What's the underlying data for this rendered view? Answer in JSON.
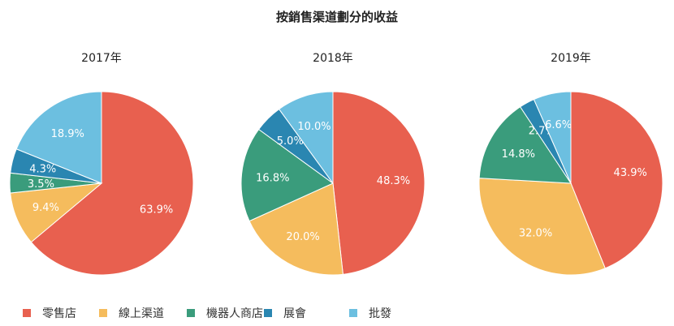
{
  "chart_data": [
    {
      "type": "pie",
      "title": "2017年",
      "categories": [
        "零售店",
        "線上渠道",
        "機器人商店",
        "展會",
        "批發"
      ],
      "values": [
        63.9,
        9.4,
        3.5,
        4.3,
        18.9
      ]
    },
    {
      "type": "pie",
      "title": "2018年",
      "categories": [
        "零售店",
        "線上渠道",
        "機器人商店",
        "展會",
        "批發"
      ],
      "values": [
        48.3,
        20.0,
        16.8,
        5.0,
        10.0
      ]
    },
    {
      "type": "pie",
      "title": "2019年",
      "categories": [
        "零售店",
        "線上渠道",
        "機器人商店",
        "展會",
        "批發"
      ],
      "values": [
        43.9,
        32.0,
        14.8,
        2.7,
        6.6
      ]
    }
  ],
  "title": "按銷售渠道劃分的收益",
  "legend": {
    "position": "bottom",
    "items": [
      "零售店",
      "線上渠道",
      "機器人商店",
      "展會",
      "批發"
    ]
  },
  "colors": [
    "#e8604f",
    "#f5bc5d",
    "#3a9c7c",
    "#2a86b1",
    "#6cbfe0"
  ]
}
